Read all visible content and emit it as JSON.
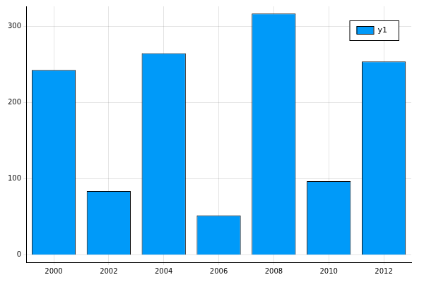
{
  "chart_data": {
    "type": "bar",
    "categories": [
      "2000",
      "2002",
      "2004",
      "2006",
      "2008",
      "2010",
      "2012"
    ],
    "series": [
      {
        "name": "y1",
        "color": "#009af9",
        "values": [
          243,
          84,
          265,
          52,
          317,
          97,
          254
        ]
      }
    ],
    "ylim": [
      -9.5,
      326.5
    ],
    "yticks": [
      0,
      100,
      200,
      300
    ],
    "grid": true,
    "legend": "top right"
  }
}
